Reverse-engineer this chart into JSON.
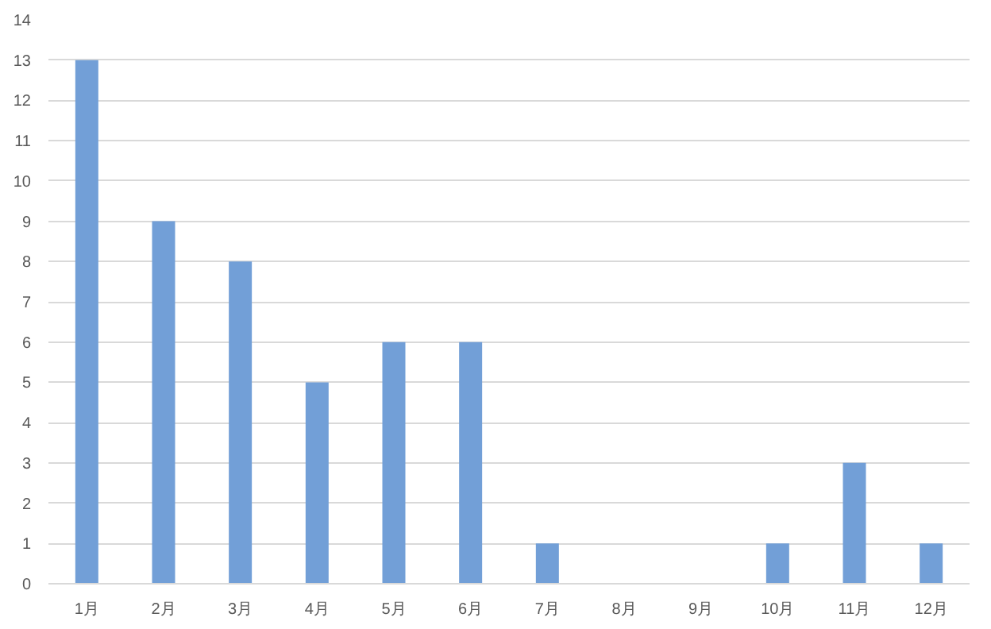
{
  "chart_data": {
    "type": "bar",
    "categories": [
      "1月",
      "2月",
      "3月",
      "4月",
      "5月",
      "6月",
      "7月",
      "8月",
      "9月",
      "10月",
      "11月",
      "12月"
    ],
    "values": [
      13,
      9,
      8,
      5,
      6,
      6,
      1,
      0,
      0,
      1,
      3,
      1
    ],
    "color": "#729fd7",
    "ylim": [
      0,
      14
    ],
    "yticks": [
      0,
      1,
      2,
      3,
      4,
      5,
      6,
      7,
      8,
      9,
      10,
      11,
      12,
      13,
      14
    ],
    "grid": "y"
  }
}
